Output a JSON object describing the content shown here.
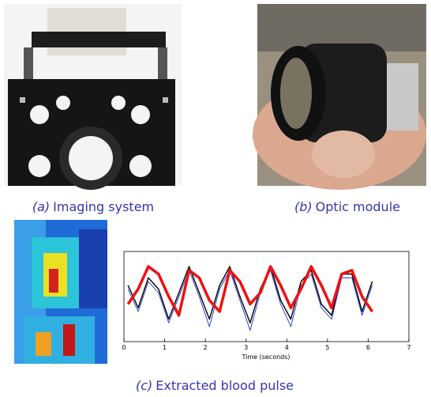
{
  "captions": [
    {
      "label": "(a)",
      "text": "Imaging system"
    },
    {
      "label": "(b)",
      "text": "Optic module"
    },
    {
      "label": "(c)",
      "text": "Extracted blood pulse"
    }
  ],
  "chart_data": {
    "type": "line",
    "x_label": "Time (seconds)",
    "x": [
      0.1,
      0.35,
      0.6,
      0.85,
      1.1,
      1.35,
      1.6,
      1.85,
      2.1,
      2.35,
      2.6,
      2.85,
      3.1,
      3.35,
      3.6,
      3.85,
      4.1,
      4.35,
      4.6,
      4.85,
      5.1,
      5.35,
      5.6,
      5.85,
      6.1
    ],
    "series": [
      {
        "color": "#1a2bdc",
        "values": [
          0.2,
          -0.4,
          0.4,
          0.1,
          -0.7,
          0.0,
          0.7,
          0.0,
          -0.8,
          0.2,
          0.7,
          -0.1,
          -0.9,
          0.1,
          0.7,
          -0.2,
          -0.8,
          0.3,
          0.6,
          -0.3,
          -0.6,
          0.5,
          0.5,
          -0.5,
          0.3
        ]
      },
      {
        "color": "#000000",
        "values": [
          0.3,
          -0.3,
          0.5,
          0.2,
          -0.6,
          0.1,
          0.8,
          0.1,
          -0.6,
          0.3,
          0.8,
          0.0,
          -0.7,
          0.2,
          0.8,
          -0.1,
          -0.6,
          0.4,
          0.7,
          -0.2,
          -0.5,
          0.6,
          0.6,
          -0.4,
          0.4
        ]
      },
      {
        "color": "#ee1111",
        "values": [
          -0.2,
          0.2,
          0.8,
          0.6,
          0.0,
          -0.5,
          0.7,
          0.5,
          -0.1,
          -0.4,
          0.7,
          0.4,
          -0.2,
          0.1,
          0.8,
          0.3,
          -0.3,
          0.2,
          0.8,
          0.3,
          -0.3,
          0.6,
          0.7,
          0.0,
          -0.4
        ]
      }
    ],
    "xlim": [
      0,
      7
    ],
    "xticks": [
      0,
      1,
      2,
      3,
      4,
      5,
      6,
      7
    ],
    "ylim": [
      -1.2,
      1.2
    ]
  }
}
